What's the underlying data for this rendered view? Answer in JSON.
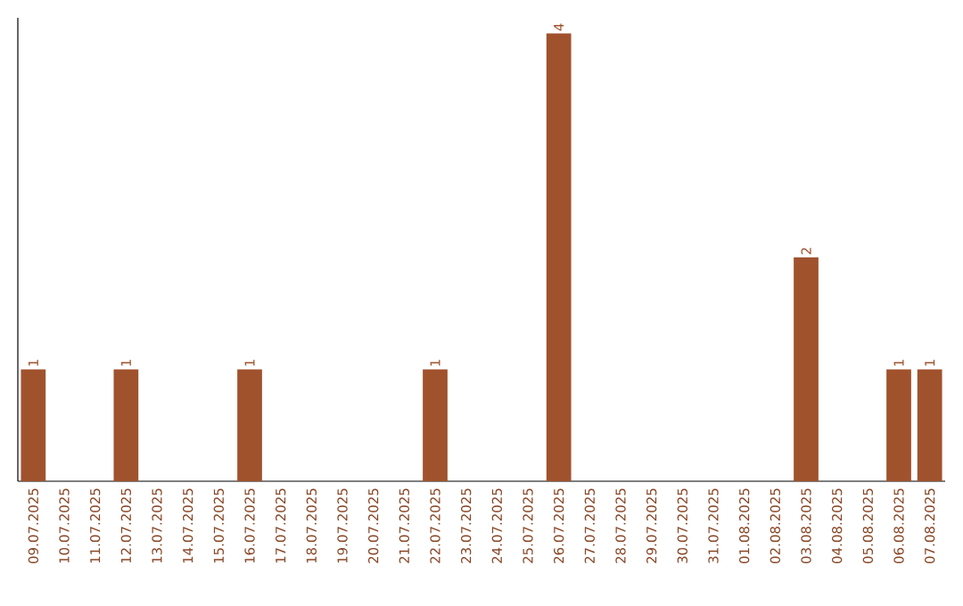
{
  "chart_data": {
    "type": "bar",
    "categories": [
      "09.07.2025",
      "10.07.2025",
      "11.07.2025",
      "12.07.2025",
      "13.07.2025",
      "14.07.2025",
      "15.07.2025",
      "16.07.2025",
      "17.07.2025",
      "18.07.2025",
      "19.07.2025",
      "20.07.2025",
      "21.07.2025",
      "22.07.2025",
      "23.07.2025",
      "24.07.2025",
      "25.07.2025",
      "26.07.2025",
      "27.07.2025",
      "28.07.2025",
      "29.07.2025",
      "30.07.2025",
      "31.07.2025",
      "01.08.2025",
      "02.08.2025",
      "03.08.2025",
      "04.08.2025",
      "05.08.2025",
      "06.08.2025",
      "07.08.2025"
    ],
    "values": [
      1,
      0,
      0,
      1,
      0,
      0,
      0,
      1,
      0,
      0,
      0,
      0,
      0,
      1,
      0,
      0,
      0,
      4,
      0,
      0,
      0,
      0,
      0,
      0,
      0,
      2,
      0,
      0,
      1,
      1
    ],
    "value_labels": [
      "1",
      null,
      null,
      "1",
      null,
      null,
      null,
      "1",
      null,
      null,
      null,
      null,
      null,
      "1",
      null,
      null,
      null,
      "4",
      null,
      null,
      null,
      null,
      null,
      null,
      null,
      "2",
      null,
      null,
      "1",
      "1"
    ],
    "color": "#a0522d"
  }
}
